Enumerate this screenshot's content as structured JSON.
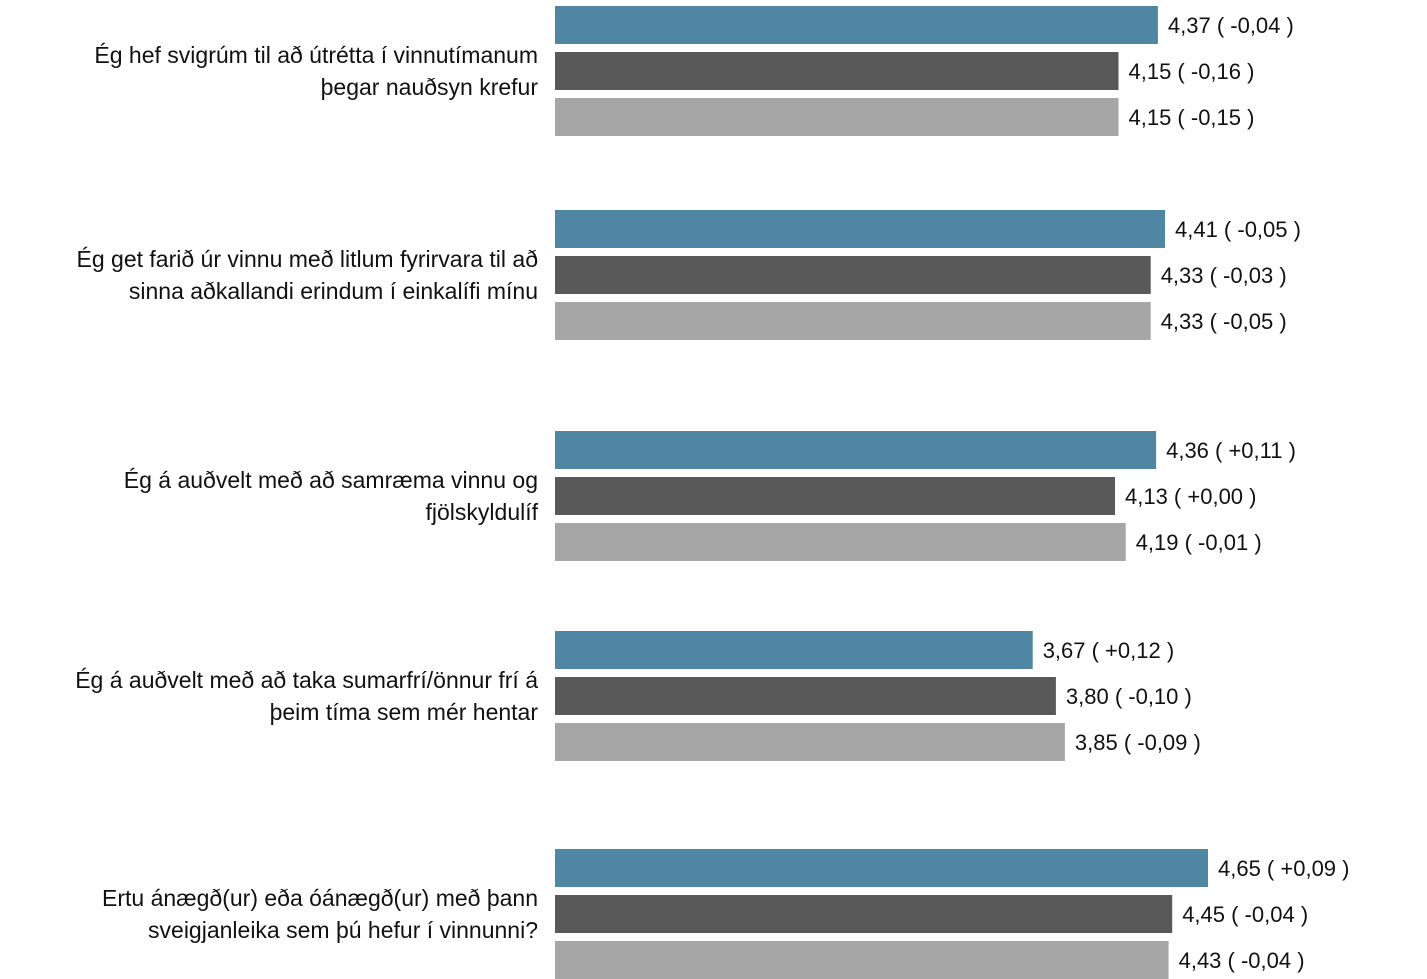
{
  "chart_data": {
    "type": "bar",
    "orientation": "horizontal",
    "categories": [
      {
        "lines": [
          "Ég hef svigrúm til að útrétta í vinnutímanum",
          "þegar nauðsyn krefur"
        ],
        "bars": [
          {
            "value": 4.37,
            "label": "4,37 ( -0,04 )"
          },
          {
            "value": 4.15,
            "label": "4,15 ( -0,16 )"
          },
          {
            "value": 4.15,
            "label": "4,15 ( -0,15 )"
          }
        ]
      },
      {
        "lines": [
          "Ég get farið úr vinnu með litlum fyrirvara til að",
          "sinna aðkallandi erindum í einkalífi mínu"
        ],
        "bars": [
          {
            "value": 4.41,
            "label": "4,41 ( -0,05 )"
          },
          {
            "value": 4.33,
            "label": "4,33 ( -0,03 )"
          },
          {
            "value": 4.33,
            "label": "4,33 ( -0,05 )"
          }
        ]
      },
      {
        "lines": [
          "Ég á auðvelt með að samræma vinnu og",
          "fjölskyldulíf"
        ],
        "bars": [
          {
            "value": 4.36,
            "label": "4,36 ( +0,11 )"
          },
          {
            "value": 4.13,
            "label": "4,13 ( +0,00 )"
          },
          {
            "value": 4.19,
            "label": "4,19 ( -0,01 )"
          }
        ]
      },
      {
        "lines": [
          "Ég á auðvelt með að taka sumarfrí/önnur frí á",
          "þeim tíma sem mér hentar"
        ],
        "bars": [
          {
            "value": 3.67,
            "label": "3,67 ( +0,12 )"
          },
          {
            "value": 3.8,
            "label": "3,80 ( -0,10 )"
          },
          {
            "value": 3.85,
            "label": "3,85 ( -0,09 )"
          }
        ]
      },
      {
        "lines": [
          "Ertu ánægð(ur) eða óánægð(ur) með þann",
          "sveigjanleika sem þú hefur í vinnunni?"
        ],
        "bars": [
          {
            "value": 4.65,
            "label": "4,65 ( +0,09 )"
          },
          {
            "value": 4.45,
            "label": "4,45 ( -0,04 )"
          },
          {
            "value": 4.43,
            "label": "4,43 ( -0,04 )"
          }
        ]
      }
    ],
    "series_colors": [
      "#4e86a3",
      "#595959",
      "#a6a6a6"
    ],
    "xlim": [
      1,
      5
    ],
    "grid": false,
    "legend": "none"
  }
}
